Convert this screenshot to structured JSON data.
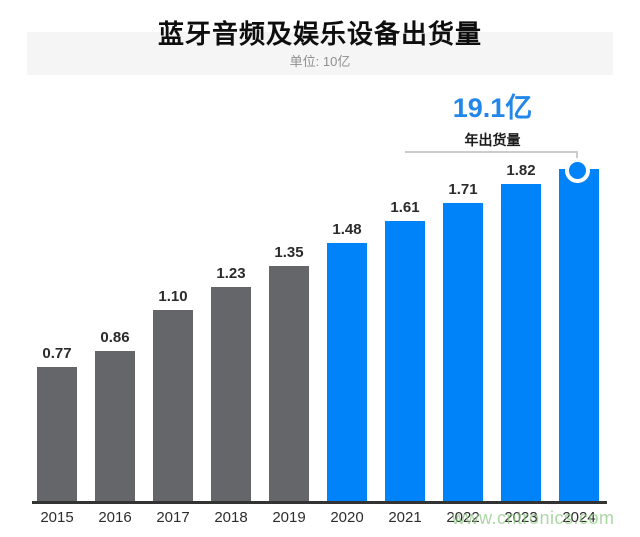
{
  "header": {
    "title": "蓝牙音频及娱乐设备出货量",
    "subtitle": "单位: 10亿"
  },
  "annotation": {
    "value": "19.1亿",
    "label": "年出货量",
    "applies_to": "2024"
  },
  "watermark": "www.cntronics.com",
  "colors": {
    "past_bar": "#64666A",
    "recent_bar": "#0082F8",
    "annotation_blue": "#2287E8",
    "axis": "#333333",
    "bracket": "#CCCCCC",
    "header_band": "#F5F5F6",
    "watermark_green": "#8CC981"
  },
  "chart_data": {
    "type": "bar",
    "title": "蓝牙音频及娱乐设备出货量",
    "subtitle_unit": "单位: 10亿",
    "categories": [
      "2015",
      "2016",
      "2017",
      "2018",
      "2019",
      "2020",
      "2021",
      "2022",
      "2023",
      "2024"
    ],
    "values": [
      0.77,
      0.86,
      1.1,
      1.23,
      1.35,
      1.48,
      1.61,
      1.71,
      1.82,
      1.91
    ],
    "bar_labels": [
      "0.77",
      "0.86",
      "1.10",
      "1.23",
      "1.35",
      "1.48",
      "1.61",
      "1.71",
      "1.82",
      ""
    ],
    "bar_color_keys": [
      "past",
      "past",
      "past",
      "past",
      "past",
      "recent",
      "recent",
      "recent",
      "recent",
      "recent"
    ],
    "highlight_category": "2024",
    "highlight_annotation": "19.1亿 年出货量",
    "xlabel": "",
    "ylabel": "",
    "ylim": [
      0,
      2.0
    ],
    "grid": false,
    "legend": "none",
    "x_axis_line": true
  }
}
